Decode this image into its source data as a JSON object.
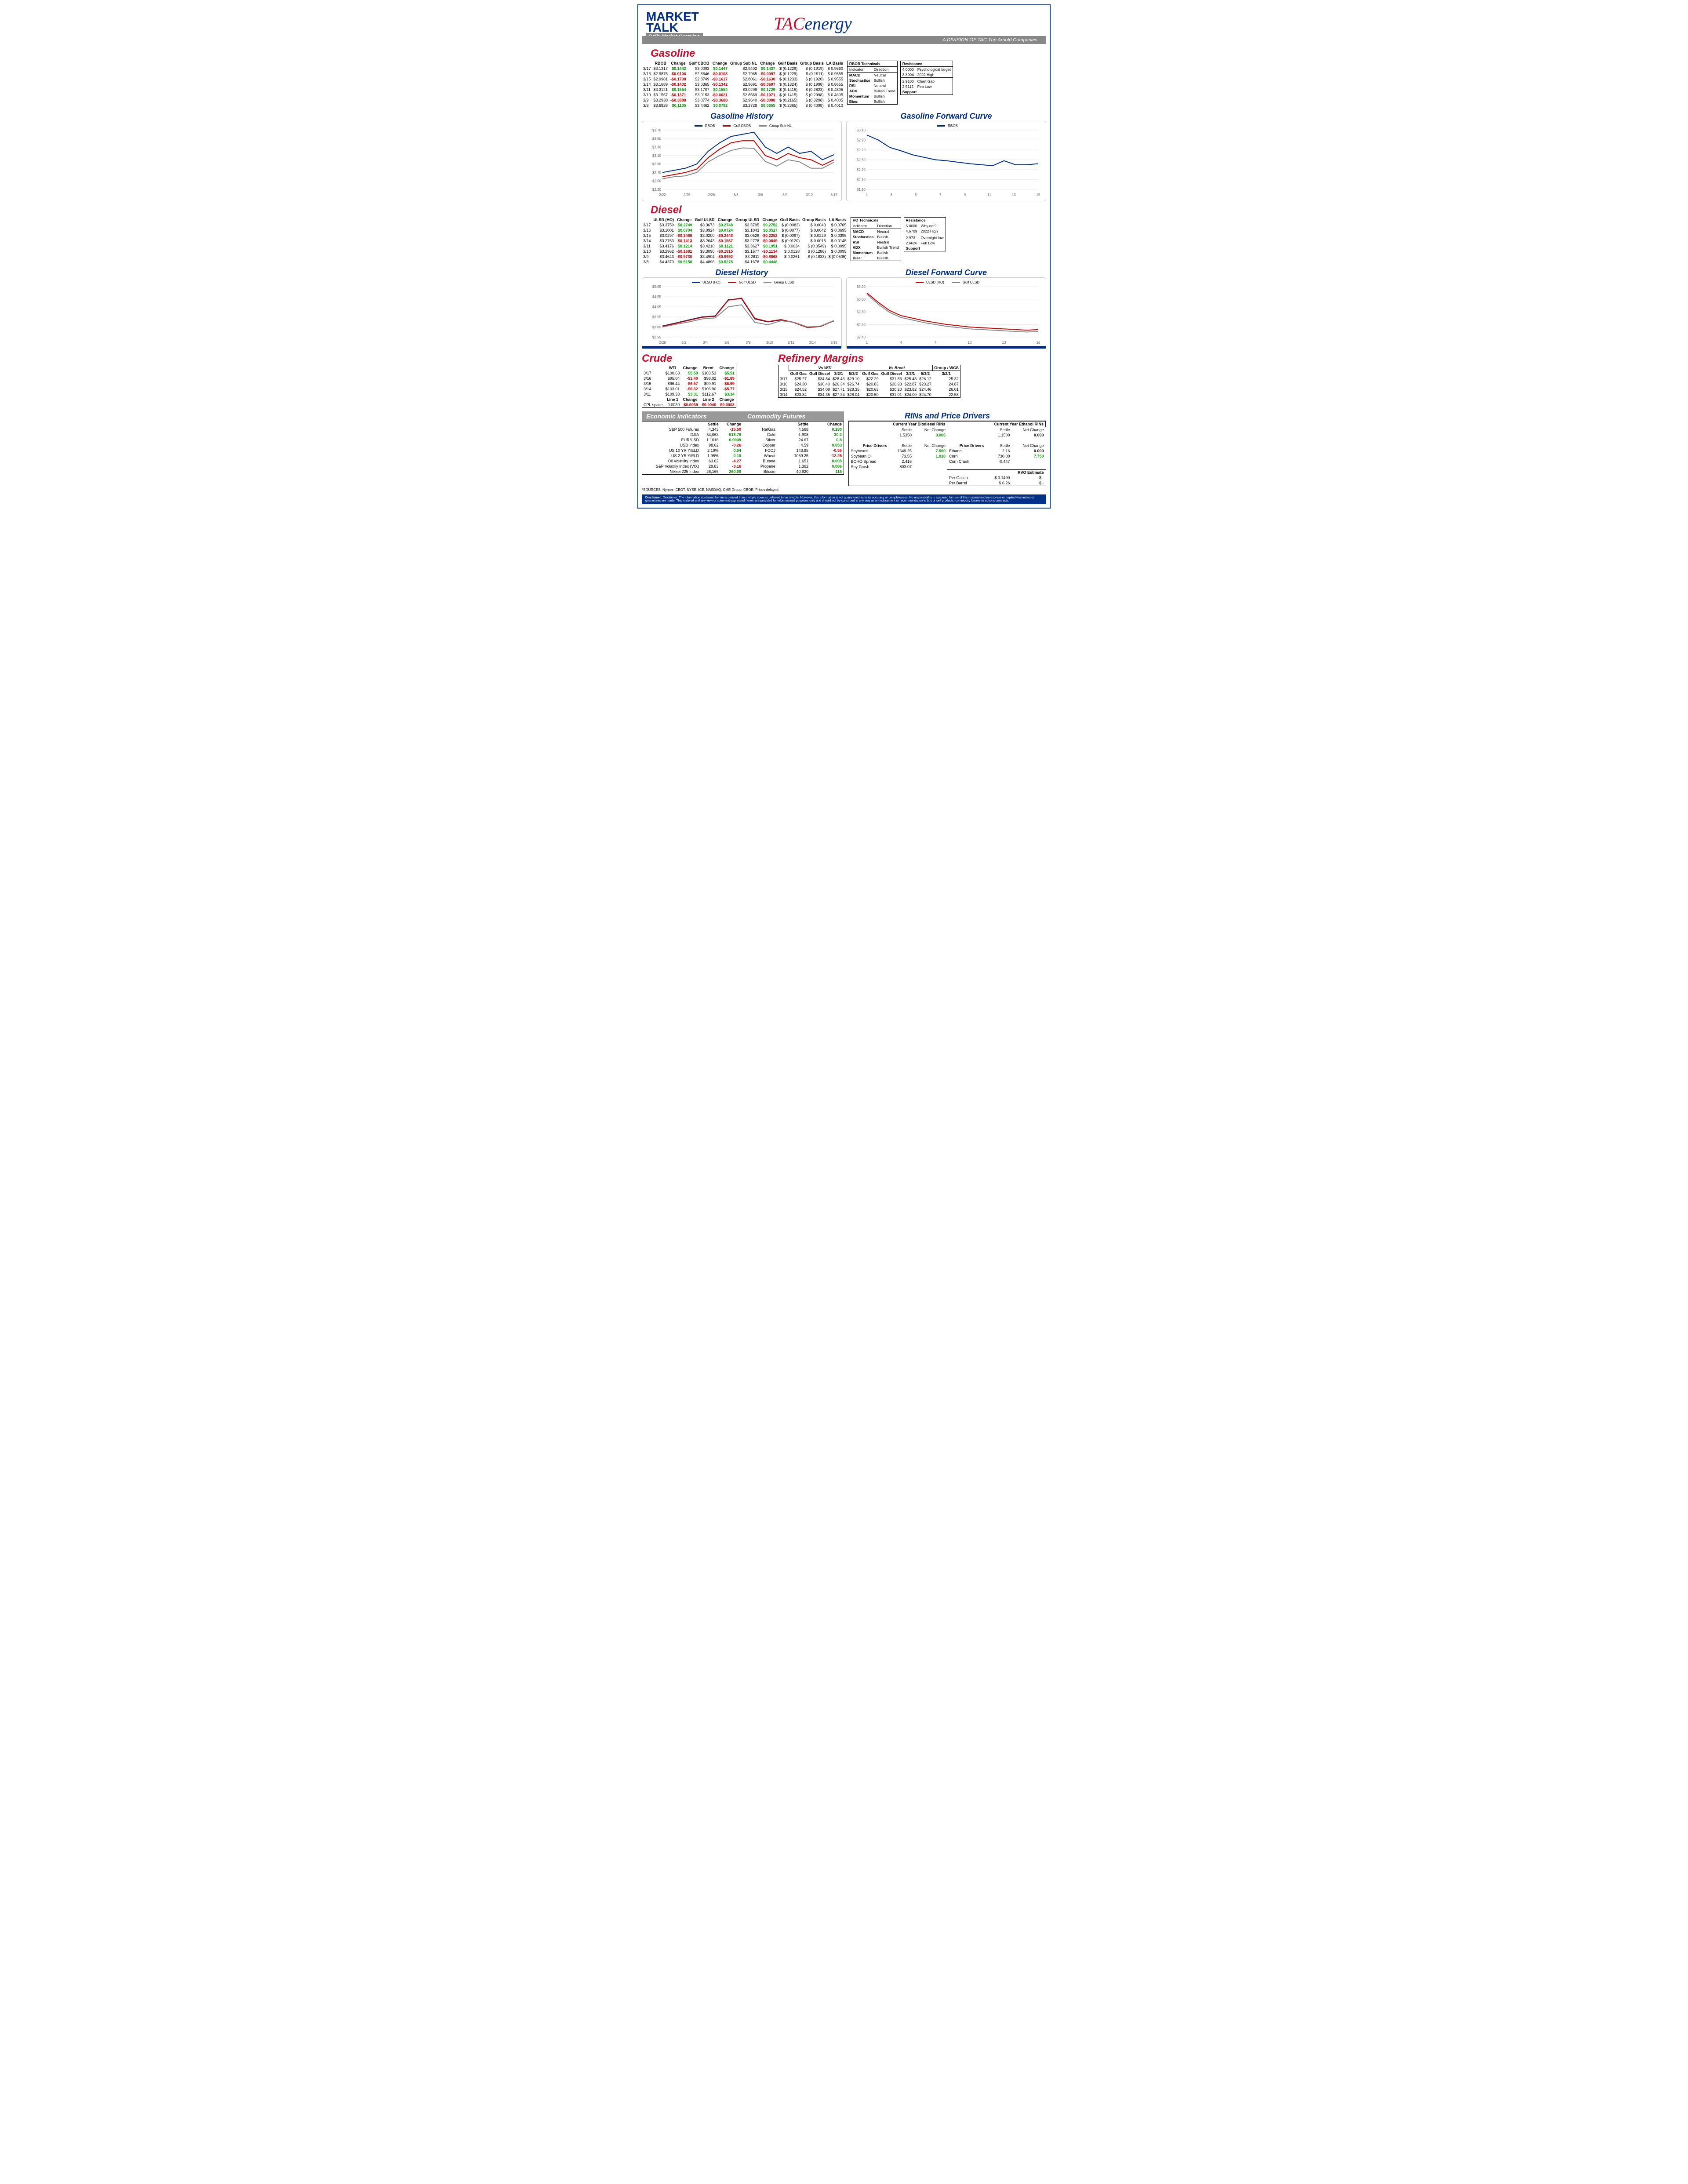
{
  "header": {
    "market": "MARKET",
    "talk": "TALK",
    "sub": "Daily Market Overview",
    "tac_t": "TAC",
    "tac_e": "energy",
    "division": "A DIVISION OF TAC The Arnold Companies"
  },
  "gasoline": {
    "title": "Gasoline",
    "cols": [
      "RBOB",
      "Change",
      "Gulf CBOB",
      "Change",
      "Group Sub NL",
      "Change",
      "Gulf Basis",
      "Group Basis",
      "LA Basis"
    ],
    "rows": [
      [
        "3/17",
        "$3.1317",
        "$0.1442",
        "$3.0093",
        "$0.1447",
        "$2.9402",
        "$0.1437",
        "$ (0.1229)",
        "$    (0.1919)",
        "$    0.9560"
      ],
      [
        "3/16",
        "$2.9875",
        "-$0.0106",
        "$2.8646",
        "-$0.0103",
        "$2.7965",
        "-$0.0097",
        "$ (0.1229)",
        "$    (0.1911)",
        "$    0.9555"
      ],
      [
        "3/15",
        "$2.9981",
        "-$0.1708",
        "$2.8749",
        "-$0.1617",
        "$2.8061",
        "-$0.1630",
        "$ (0.1233)",
        "$    (0.1920)",
        "$    0.9555"
      ],
      [
        "3/14",
        "$3.1689",
        "-$0.1432",
        "$3.0365",
        "-$0.1342",
        "$2.9691",
        "-$0.0607",
        "$ (0.1324)",
        "$    (0.1998)",
        "$    0.8655"
      ],
      [
        "3/11",
        "$3.3121",
        "$0.1554",
        "$3.1707",
        "$0.1554",
        "$3.0298",
        "$0.1729",
        "$ (0.1415)",
        "$    (0.2823)",
        "$    0.4805"
      ],
      [
        "3/10",
        "$3.1567",
        "-$0.1371",
        "$3.0153",
        "-$0.0621",
        "$2.8569",
        "-$0.1071",
        "$ (0.1415)",
        "$    (0.2998)",
        "$    0.4605"
      ],
      [
        "3/9",
        "$3.2938",
        "-$0.3888",
        "$3.0774",
        "-$0.3688",
        "$2.9640",
        "-$0.3088",
        "$ (0.2165)",
        "$    (0.3298)",
        "$    0.4005"
      ],
      [
        "3/8",
        "$3.6826",
        "$0.1105",
        "$3.4462",
        "$0.0792",
        "$3.2728",
        "$0.0655",
        "$ (0.2365)",
        "$    (0.4098)",
        "$    0.4010"
      ]
    ],
    "tech": {
      "title": "RBOB Technicals",
      "hdr": [
        "Indicator",
        "Direction"
      ],
      "rows": [
        [
          "MACD",
          "Neutral"
        ],
        [
          "Stochastics",
          "Bullish"
        ],
        [
          "RSI",
          "Neutral"
        ],
        [
          "ADX",
          "Bullish Trend"
        ],
        [
          "Momentum",
          "Bullish"
        ],
        [
          "Bias:",
          "Bullish"
        ]
      ],
      "res_title": "Resistance",
      "res": [
        [
          "4.0000",
          "Psychological target"
        ],
        [
          "3.8904",
          "2022 High"
        ],
        [
          "2.9100",
          "Chart Gap"
        ],
        [
          "2.5112",
          "Feb Low"
        ]
      ],
      "sup_title": "Support"
    },
    "history": {
      "title": "Gasoline History",
      "series": [
        {
          "name": "RBOB",
          "color": "#003087",
          "values": [
            2.7,
            2.75,
            2.8,
            2.9,
            3.2,
            3.4,
            3.55,
            3.6,
            3.65,
            3.3,
            3.15,
            3.3,
            3.15,
            3.2,
            3.0,
            3.12
          ]
        },
        {
          "name": "Gulf CBOB",
          "color": "#cc0000",
          "values": [
            2.6,
            2.65,
            2.7,
            2.78,
            3.05,
            3.25,
            3.4,
            3.45,
            3.45,
            3.1,
            3.0,
            3.15,
            3.05,
            3.0,
            2.87,
            3.0
          ]
        },
        {
          "name": "Group Sub NL",
          "color": "#888",
          "values": [
            2.55,
            2.6,
            2.62,
            2.7,
            2.95,
            3.1,
            3.22,
            3.28,
            3.27,
            2.96,
            2.85,
            3.0,
            2.95,
            2.8,
            2.8,
            2.94
          ]
        }
      ],
      "ylim": [
        2.3,
        3.7
      ],
      "yticks": [
        "$2.30",
        "$2.50",
        "$2.70",
        "$2.90",
        "$3.10",
        "$3.30",
        "$3.50",
        "$3.70"
      ],
      "xticks": [
        "2/22",
        "2/25",
        "2/28",
        "3/3",
        "3/6",
        "3/9",
        "3/12",
        "3/15"
      ]
    },
    "forward": {
      "title": "Gasoline Forward Curve",
      "series": [
        {
          "name": "RBOB",
          "color": "#003087",
          "values": [
            3.0,
            2.9,
            2.75,
            2.68,
            2.6,
            2.55,
            2.5,
            2.48,
            2.45,
            2.42,
            2.4,
            2.38,
            2.48,
            2.4,
            2.4,
            2.42
          ]
        }
      ],
      "ylim": [
        1.9,
        3.1
      ],
      "yticks": [
        "$1.90",
        "$2.10",
        "$2.30",
        "$2.50",
        "$2.70",
        "$2.90",
        "$3.10"
      ],
      "xticks": [
        "1",
        "3",
        "5",
        "7",
        "9",
        "11",
        "13",
        "15"
      ]
    }
  },
  "diesel": {
    "title": "Diesel",
    "cols": [
      "ULSD (HO)",
      "Change",
      "Gulf ULSD",
      "Change",
      "Group ULSD",
      "Change",
      "Gulf Basis",
      "Group Basis",
      "LA Basis"
    ],
    "rows": [
      [
        "3/17",
        "$3.3750",
        "$0.2749",
        "$3.3673",
        "$0.2748",
        "$3.3795",
        "$0.2752",
        "$ (0.0082)",
        "$    0.0043",
        "$    0.0705"
      ],
      [
        "3/16",
        "$3.1001",
        "$0.0704",
        "$3.0924",
        "$0.0724",
        "$3.1043",
        "$0.0517",
        "$ (0.0077)",
        "$    0.0042",
        "$    0.0695"
      ],
      [
        "3/15",
        "$3.0297",
        "-$0.2466",
        "$3.0200",
        "-$0.2443",
        "$3.0526",
        "-$0.2252",
        "$ (0.0097)",
        "$    0.0229",
        "$    0.0395"
      ],
      [
        "3/14",
        "$3.2763",
        "-$0.1413",
        "$3.2643",
        "-$0.1567",
        "$3.2778",
        "-$0.0849",
        "$ (0.0120)",
        "$    0.0015",
        "$    0.0145"
      ],
      [
        "3/11",
        "$3.4176",
        "$0.1214",
        "$3.4210",
        "$0.1121",
        "$3.3627",
        "$0.1951",
        "$  0.0034",
        "$   (0.0549)",
        "$    0.0095"
      ],
      [
        "3/10",
        "$3.2962",
        "-$0.1681",
        "$3.3090",
        "-$0.1815",
        "$3.1677",
        "-$0.1134",
        "$  0.0128",
        "$   (0.1286)",
        "$    0.0095"
      ],
      [
        "3/9",
        "$3.4643",
        "-$0.9730",
        "$3.4904",
        "-$0.9992",
        "$3.2811",
        "-$0.8868",
        "$  0.0261",
        "$   (0.1833)",
        "$   (0.0505)"
      ],
      [
        "3/8",
        "$4.4373",
        "$0.5158",
        "$4.4896",
        "$0.5278",
        "$4.1678",
        "$0.4448",
        "",
        "",
        ""
      ]
    ],
    "tech": {
      "title": "HO Technicals",
      "rows": [
        [
          "MACD",
          "Neutral"
        ],
        [
          "Stochastics",
          "Bullish"
        ],
        [
          "RSI",
          "Neutral"
        ],
        [
          "ADX",
          "Bullish Trend"
        ],
        [
          "Momentum",
          "Bullish"
        ],
        [
          "Bias:",
          "Bullish"
        ]
      ],
      "res_title": "Resistance",
      "res": [
        [
          "5.0000",
          "Why not?"
        ],
        [
          "4.6709",
          "2022 High"
        ],
        [
          "2.973",
          "Overnight low"
        ],
        [
          "2.6626",
          "Feb Low"
        ]
      ],
      "sup_title": "Support"
    },
    "history": {
      "title": "Diesel History",
      "series": [
        {
          "name": "ULSD (HO)",
          "color": "#003087",
          "values": [
            3.1,
            3.25,
            3.4,
            3.55,
            3.6,
            4.4,
            4.45,
            3.45,
            3.3,
            3.4,
            3.28,
            3.05,
            3.1,
            3.35
          ]
        },
        {
          "name": "Gulf ULSD",
          "color": "#cc0000",
          "values": [
            3.08,
            3.23,
            3.38,
            3.53,
            3.58,
            4.38,
            4.48,
            3.48,
            3.32,
            3.42,
            3.26,
            3.02,
            3.08,
            3.36
          ]
        },
        {
          "name": "Group ULSD",
          "color": "#888",
          "values": [
            3.05,
            3.18,
            3.3,
            3.45,
            3.5,
            4.05,
            4.15,
            3.28,
            3.16,
            3.36,
            3.28,
            3.05,
            3.1,
            3.37
          ]
        }
      ],
      "ylim": [
        2.55,
        5.05
      ],
      "yticks": [
        "$2.55",
        "$3.05",
        "$3.55",
        "$4.05",
        "$4.55",
        "$5.05"
      ],
      "xticks": [
        "2/28",
        "3/2",
        "3/4",
        "3/6",
        "3/8",
        "3/10",
        "3/12",
        "3/14",
        "3/16"
      ]
    },
    "forward": {
      "title": "Diesel Forward Curve",
      "series": [
        {
          "name": "ULSD (HO)",
          "color": "#cc0000",
          "values": [
            3.1,
            2.95,
            2.82,
            2.74,
            2.7,
            2.66,
            2.63,
            2.6,
            2.58,
            2.56,
            2.55,
            2.54,
            2.53,
            2.52,
            2.51,
            2.52
          ]
        },
        {
          "name": "Gulf ULSD",
          "color": "#888",
          "values": [
            3.08,
            2.92,
            2.79,
            2.71,
            2.67,
            2.63,
            2.6,
            2.57,
            2.55,
            2.53,
            2.52,
            2.51,
            2.5,
            2.49,
            2.48,
            2.49
          ]
        }
      ],
      "ylim": [
        2.4,
        3.2
      ],
      "yticks": [
        "$2.40",
        "$2.60",
        "$2.80",
        "$3.00",
        "$3.20"
      ],
      "xticks": [
        "1",
        "4",
        "7",
        "10",
        "13",
        "16"
      ]
    }
  },
  "crude": {
    "title": "Crude",
    "cols": [
      "",
      "WTI",
      "Change",
      "Brent",
      "Change"
    ],
    "rows": [
      [
        "3/17",
        "$100.63",
        "$5.59",
        "$103.53",
        "$5.51"
      ],
      [
        "3/16",
        "$95.04",
        "-$1.40",
        "$98.02",
        "-$1.89"
      ],
      [
        "3/15",
        "$96.44",
        "-$6.57",
        "$99.91",
        "-$6.99"
      ],
      [
        "3/14",
        "$103.01",
        "-$6.32",
        "$106.90",
        "-$5.77"
      ],
      [
        "3/11",
        "$109.33",
        "$3.31",
        "$112.67",
        "$3.34"
      ]
    ],
    "cpl": [
      "CPL space",
      "-0.0039",
      "-$0.0039",
      "-$0.0040",
      "-$0.0003"
    ],
    "line_hdr": [
      "",
      "Line 1",
      "Change",
      "Line 2",
      "Change"
    ]
  },
  "refinery": {
    "title": "Refinery Margins",
    "hdr_wti": "Vs WTI",
    "hdr_brent": "Vs Brent",
    "hdr_wcs": "Group / WCS",
    "cols": [
      "Gulf Gas",
      "Gulf Diesel",
      "3/2/1",
      "5/3/2",
      "Gulf Gas",
      "Gulf Diesel",
      "3/2/1",
      "5/3/2",
      "3/2/1"
    ],
    "rows": [
      [
        "3/17",
        "$25.27",
        "$34.84",
        "$28.46",
        "$29.10",
        "$22.29",
        "$31.86",
        "$25.48",
        "$26.12",
        "25.32"
      ],
      [
        "3/16",
        "$24.30",
        "$30.40",
        "$26.34",
        "$26.74",
        "$20.83",
        "$26.93",
        "$22.87",
        "$23.27",
        "24.87"
      ],
      [
        "3/15",
        "$24.52",
        "$34.09",
        "$27.71",
        "$28.35",
        "$20.63",
        "$30.20",
        "$23.82",
        "$24.46",
        "26.01"
      ],
      [
        "3/14",
        "$23.84",
        "$34.35",
        "$27.34",
        "$28.04",
        "$20.50",
        "$31.01",
        "$24.00",
        "$24.70",
        "22.58"
      ]
    ]
  },
  "econ": {
    "title": "Economic Indicators",
    "cols": [
      "",
      "Settle",
      "Change"
    ],
    "rows": [
      [
        "S&P 500 Futures",
        "4,343",
        "-15.50"
      ],
      [
        "DJIA",
        "34,063",
        "518.76"
      ],
      [
        "EUR/USD",
        "1.1016",
        "0.0039"
      ],
      [
        "USD Index",
        "98.62",
        "-0.26"
      ],
      [
        "US 10 YR YIELD",
        "2.19%",
        "0.04"
      ],
      [
        "US 2 YR YIELD",
        "1.95%",
        "0.10"
      ],
      [
        "Oil Volatility Index",
        "63.62",
        "-4.27"
      ],
      [
        "S&P Volatiliy Index (VIX)",
        "29.83",
        "-3.16"
      ],
      [
        "Nikkei 225 Index",
        "26,165",
        "260.00"
      ]
    ]
  },
  "commod": {
    "title": "Commodity Futures",
    "cols": [
      "",
      "Settle",
      "Change"
    ],
    "rows": [
      [
        "NatGas",
        "4.568",
        "0.180"
      ],
      [
        "Gold",
        "1,908",
        "30.2"
      ],
      [
        "Silver",
        "24.67",
        "0.8"
      ],
      [
        "Copper",
        "4.59",
        "0.053"
      ],
      [
        "FCOJ",
        "143.85",
        "-0.55"
      ],
      [
        "Wheat",
        "1069.25",
        "-12.25"
      ],
      [
        "Butane",
        "1.651",
        "0.005"
      ],
      [
        "Propane",
        "1.362",
        "0.006"
      ],
      [
        "Bitcoin",
        "40,920",
        "115"
      ]
    ]
  },
  "rins": {
    "title": "RINs and Price Drivers",
    "bio_title": "Current Year Biodiesel RINs",
    "eth_title": "Current Year Ethanol RINs",
    "bio": {
      "settle": "1.5350",
      "chg": "0.005"
    },
    "eth": {
      "settle": "1.1500",
      "chg": "0.000"
    },
    "drivers_left": [
      [
        "Soybeans",
        "1649.25",
        "7.500"
      ],
      [
        "Soybean Oil",
        "73.55",
        "1.010"
      ],
      [
        "BOHO Spread",
        "2.416",
        ""
      ],
      [
        "Soy Crush",
        "803.07",
        ""
      ]
    ],
    "drivers_right": [
      [
        "Ethanol",
        "2.16",
        "0.000"
      ],
      [
        "Corn",
        "730.00",
        "7.750"
      ],
      [
        "Corn Crush",
        "-0.447",
        ""
      ]
    ],
    "rvo": {
      "title": "RVO Estimate",
      "pg": "Per Gallon",
      "pg_v": "$    0.1490",
      "pb": "Per Barrel",
      "pb_v": "$    6.26",
      "dash": "$          -"
    }
  },
  "sources": "*SOURCES: Nymex, CBOT, NYSE, ICE, NASDAQ, CME Group, CBOE.   Prices delayed.",
  "disclaimer": "Disclaimer: The information contained herein is derived from multiple sources believed to be reliable. However, this information is not guaranteed as to its accuracy or completeness. No responsibility is assumed for use of this material and no express or implied warranties or guarantees are made. This material and any view or comment expressed herein are provided for informational purposes only and should not be construed in any way as an inducement or recommendation to buy or sell products, commodity futures or options contracts."
}
